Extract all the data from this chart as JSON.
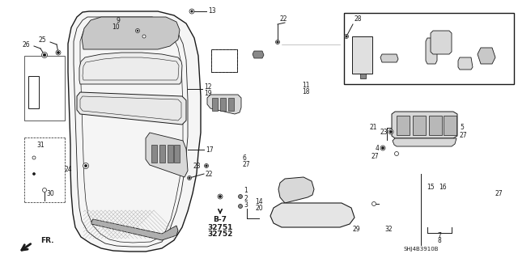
{
  "bg_color": "#ffffff",
  "fig_width": 6.4,
  "fig_height": 3.19,
  "dpi": 100,
  "ref_code": "SHJ4B3910B",
  "line_color": "#1a1a1a",
  "gray_fill": "#b0b0b0",
  "light_gray": "#d8d8d8",
  "dark_gray": "#888888",
  "label_fontsize": 5.5,
  "bold_fontsize": 6.5
}
